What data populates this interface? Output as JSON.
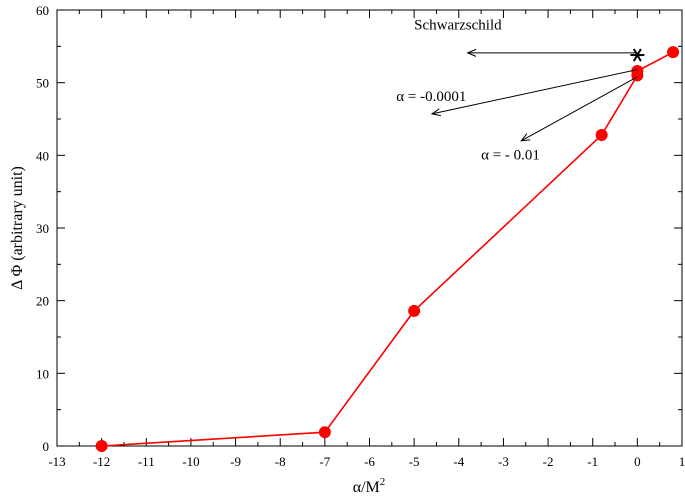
{
  "chart_data": {
    "type": "line",
    "xlabel": "α/M",
    "xlabel_sup": "2",
    "ylabel": "Δ Φ (arbitrary unit)",
    "xlim": [
      -13,
      1
    ],
    "ylim": [
      0,
      60
    ],
    "xticks": [
      -13,
      -12,
      -11,
      -10,
      -9,
      -8,
      -7,
      -6,
      -5,
      -4,
      -3,
      -2,
      -1,
      0,
      1
    ],
    "yticks": [
      0,
      10,
      20,
      30,
      40,
      50,
      60
    ],
    "grid": false,
    "series": [
      {
        "color": "#ff0000",
        "x": [
          -12,
          -7,
          -5,
          -0.8,
          0,
          0,
          0.8
        ],
        "y": [
          0,
          1.9,
          18.6,
          42.8,
          51.0,
          51.6,
          54.2
        ]
      }
    ],
    "marker_point": {
      "x": 0,
      "y": 53.8,
      "symbol": "*"
    },
    "annotations": [
      {
        "text": "Schwarzschild",
        "text_x": -5.0,
        "text_y": 57.3,
        "arrow_from": [
          0,
          54.1
        ],
        "arrow_to": [
          -3.8,
          54.1
        ]
      },
      {
        "text": "α = -0.0001",
        "text_x": -5.4,
        "text_y": 47.5,
        "arrow_from": [
          0,
          51.8
        ],
        "arrow_to": [
          -4.6,
          45.7
        ]
      },
      {
        "text": "α = - 0.01",
        "text_x": -3.5,
        "text_y": 39.4,
        "arrow_from": [
          0,
          50.8
        ],
        "arrow_to": [
          -2.6,
          42.0
        ]
      }
    ]
  }
}
